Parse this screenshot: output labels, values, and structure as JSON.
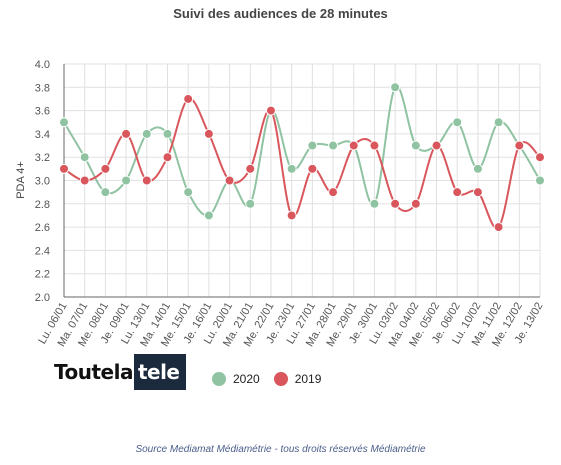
{
  "title": "Suivi des audiences de 28 minutes",
  "logo": {
    "part1": "Toutela",
    "part2": "tele"
  },
  "source": "Source Mediamat Médiamétrie - tous droits réservés Médiamétrie",
  "colors": {
    "series_2020": "#8fc3a2",
    "series_2019": "#d9575c",
    "grid": "#e0e0e0",
    "plot_border": "#666666"
  },
  "chart_data": {
    "type": "line",
    "title": "Suivi des audiences de 28 minutes",
    "xlabel": "",
    "ylabel": "PDA 4+",
    "ylim": [
      2.0,
      4.0
    ],
    "yticks": [
      "2.0",
      "2.2",
      "2.4",
      "2.6",
      "2.8",
      "3.0",
      "3.2",
      "3.4",
      "3.6",
      "3.8",
      "4.0"
    ],
    "grid": true,
    "legend_position": "bottom",
    "categories": [
      "Lu. 06/01",
      "Ma. 07/01",
      "Me. 08/01",
      "Je. 09/01",
      "Lu. 13/01",
      "Ma. 14/01",
      "Me. 15/01",
      "Je. 16/01",
      "Lu. 20/01",
      "Ma. 21/01",
      "Me. 22/01",
      "Je. 23/01",
      "Lu. 27/01",
      "Ma. 28/01",
      "Me. 29/01",
      "Je. 30/01",
      "Lu. 03/02",
      "Ma. 04/02",
      "Me. 05/02",
      "Je. 06/02",
      "Lu. 10/02",
      "Ma. 11/02",
      "Me. 12/02",
      "Je. 13/02"
    ],
    "series": [
      {
        "name": "2020",
        "values": [
          3.5,
          3.2,
          2.9,
          3.0,
          3.4,
          3.4,
          2.9,
          2.7,
          3.0,
          2.8,
          3.6,
          3.1,
          3.3,
          3.3,
          3.3,
          2.8,
          3.8,
          3.3,
          3.3,
          3.5,
          3.1,
          3.5,
          3.3,
          3.0
        ]
      },
      {
        "name": "2019",
        "values": [
          3.1,
          3.0,
          3.1,
          3.4,
          3.0,
          3.2,
          3.7,
          3.4,
          3.0,
          3.1,
          3.6,
          2.7,
          3.1,
          2.9,
          3.3,
          3.3,
          2.8,
          2.8,
          3.3,
          2.9,
          2.9,
          2.6,
          3.3,
          3.2
        ]
      }
    ]
  }
}
